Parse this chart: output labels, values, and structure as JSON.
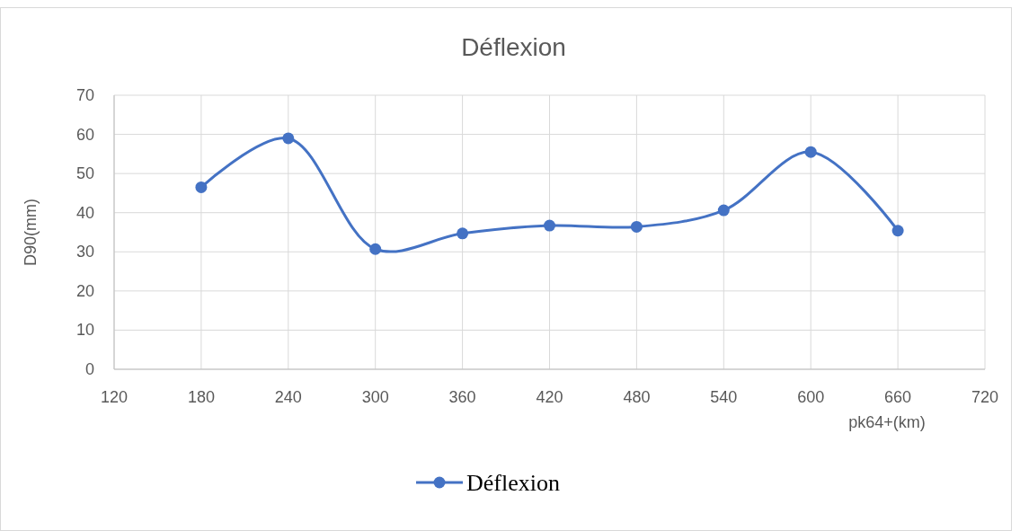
{
  "chart_data": {
    "type": "line",
    "title": "Déflexion",
    "xlabel": "pk64+(km)",
    "ylabel": "D90(mm)",
    "x": [
      180,
      240,
      300,
      360,
      420,
      480,
      540,
      600,
      660
    ],
    "series": [
      {
        "name": "Déflexion",
        "color": "#4472c4",
        "values": [
          46.5,
          59,
          30.7,
          34.7,
          36.7,
          36.4,
          40.6,
          55.5,
          35.4
        ]
      }
    ],
    "xlim": [
      120,
      720
    ],
    "xticks": [
      120,
      180,
      240,
      300,
      360,
      420,
      480,
      540,
      600,
      660,
      720
    ],
    "ylim": [
      0,
      70
    ],
    "yticks": [
      0,
      10,
      20,
      30,
      40,
      50,
      60,
      70
    ],
    "grid": true,
    "legend": "bottom",
    "marker": "circle",
    "line_style": "solid"
  }
}
